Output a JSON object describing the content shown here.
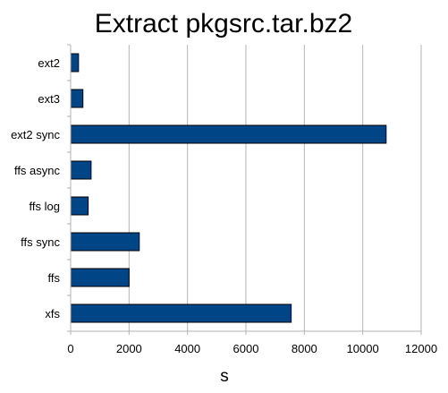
{
  "chart_data": {
    "type": "bar",
    "orientation": "horizontal",
    "title": "Extract pkgsrc.tar.bz2",
    "xlabel": "s",
    "ylabel": "",
    "categories": [
      "ext2",
      "ext3",
      "ext2 sync",
      "ffs async",
      "ffs log",
      "ffs sync",
      "ffs",
      "xfs"
    ],
    "values": [
      270,
      420,
      10800,
      700,
      600,
      2350,
      2000,
      7550
    ],
    "xlim": [
      0,
      12000
    ],
    "xticks": [
      0,
      2000,
      4000,
      6000,
      8000,
      10000,
      12000
    ],
    "grid": "vertical",
    "legend": "none",
    "bar_color": "#004586",
    "bar_edge_color": "#000000",
    "grid_color": "#b3b3b3",
    "axis_color": "#b3b3b3"
  }
}
